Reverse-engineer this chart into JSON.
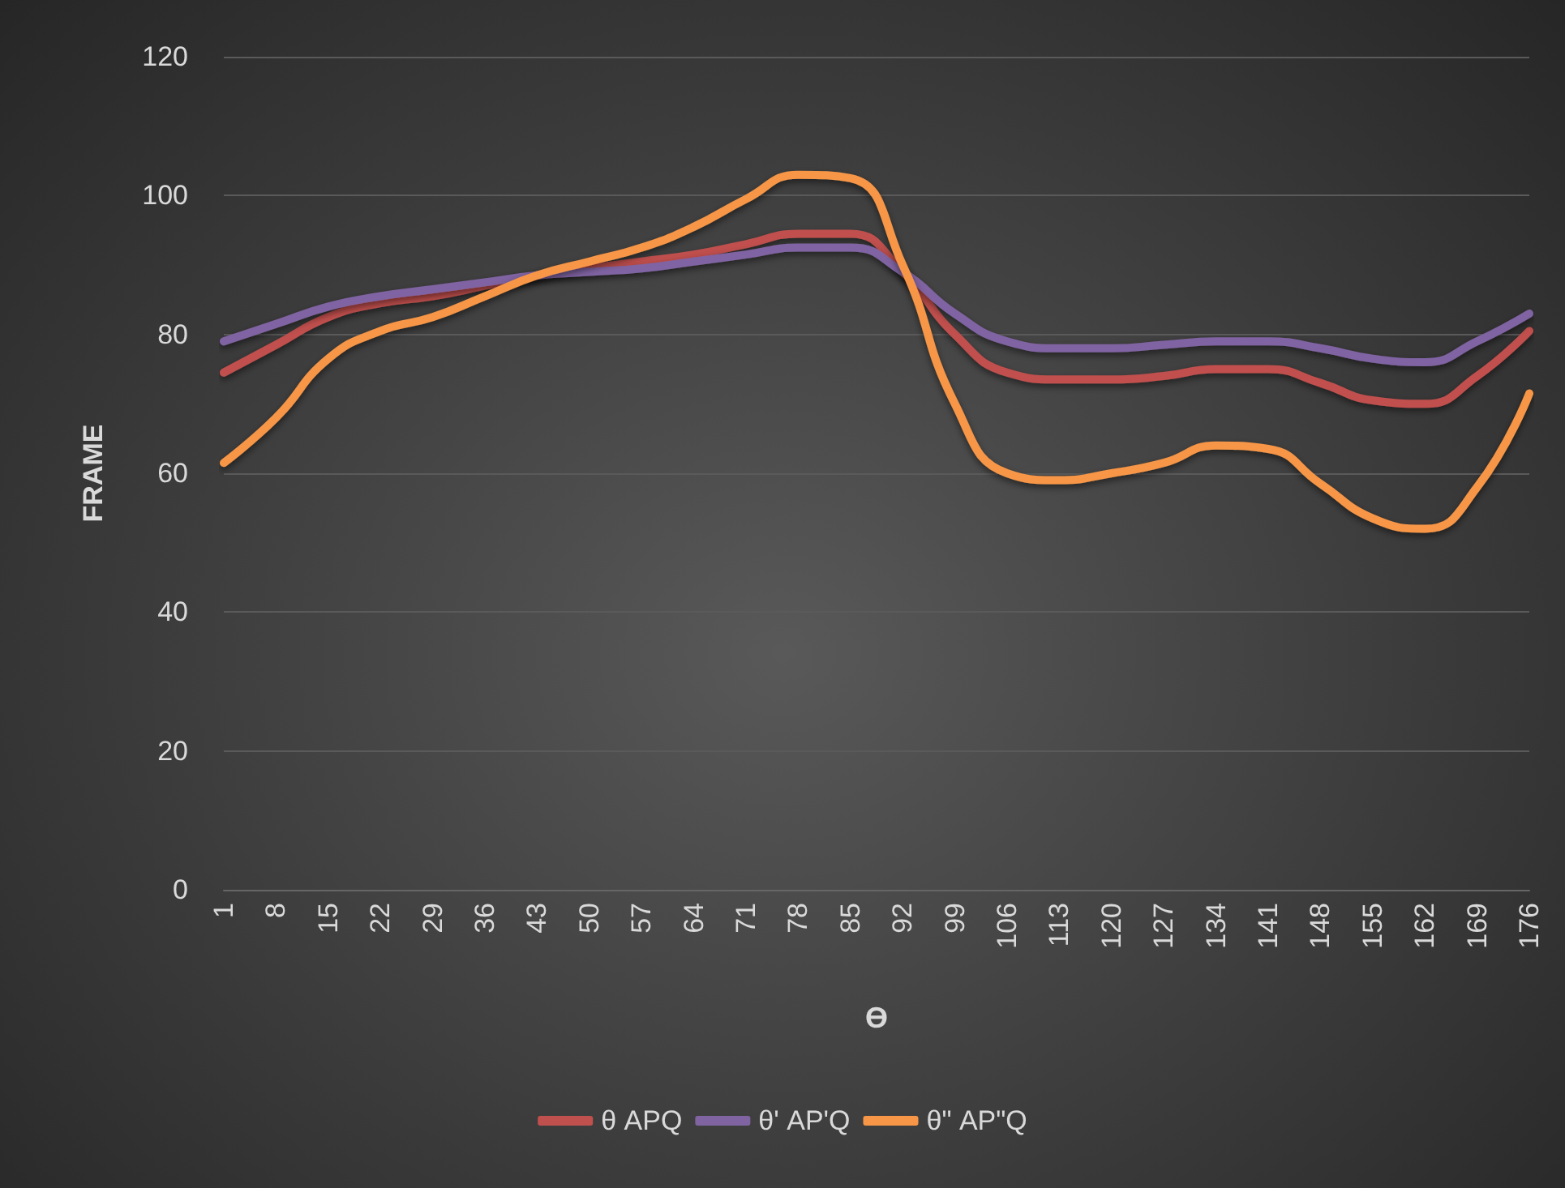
{
  "chart_data": {
    "type": "line",
    "xlabel": "ϴ",
    "ylabel": "FRAME",
    "categories": [
      "1",
      "8",
      "15",
      "22",
      "29",
      "36",
      "43",
      "50",
      "57",
      "64",
      "71",
      "78",
      "85",
      "92",
      "99",
      "106",
      "113",
      "120",
      "127",
      "134",
      "141",
      "148",
      "155",
      "162",
      "169",
      "176"
    ],
    "series": [
      {
        "name": "θ APQ",
        "color": "#c0504d",
        "values": [
          74.5,
          78.5,
          82.5,
          84.5,
          85.5,
          87,
          88.5,
          89.5,
          90.5,
          91.5,
          93,
          94.5,
          94.5,
          89,
          80,
          74.5,
          73.5,
          73.5,
          74,
          75,
          75,
          73,
          70.5,
          70,
          74,
          80.5
        ]
      },
      {
        "name": "θ' AP'Q",
        "color": "#8064a2",
        "values": [
          79,
          81.5,
          84,
          85.5,
          86.5,
          87.5,
          88.5,
          89,
          89.5,
          90.5,
          91.5,
          92.5,
          92.5,
          89,
          83,
          79,
          78,
          78,
          78.5,
          79,
          79,
          78,
          76.5,
          76,
          79,
          83
        ]
      },
      {
        "name": "θ\" AP\"Q",
        "color": "#f79646",
        "values": [
          61.5,
          68,
          76.5,
          80.5,
          82.5,
          85.5,
          88.5,
          90.5,
          92.5,
          95.5,
          99.5,
          103,
          102.5,
          90,
          70,
          60,
          59,
          60,
          61.5,
          64,
          63.5,
          58.5,
          53.5,
          52,
          58,
          71.5
        ]
      }
    ],
    "ylim": [
      0,
      120
    ],
    "yticks": [
      0,
      20,
      40,
      60,
      80,
      100,
      120
    ],
    "grid": "y",
    "legend": "bottom",
    "marker": "none",
    "line_style": "solid"
  }
}
